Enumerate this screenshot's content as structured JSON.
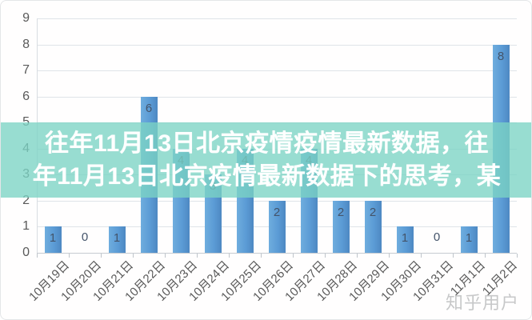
{
  "banner": {
    "line1": "往年11月13日北京疫情疫情最新数据，往",
    "line2": "年11月13日北京疫情最新数据下的思考，某",
    "background_color": "#7bd4c4",
    "text_color": "#ffffff"
  },
  "watermark": {
    "text": "知乎用户",
    "color": "#c2c3c4"
  },
  "chart_data": {
    "type": "bar",
    "title": "",
    "xlabel": "",
    "ylabel": "",
    "categories": [
      "10月19日",
      "10月20日",
      "10月21日",
      "10月22日",
      "10月23日",
      "10月24日",
      "10月25日",
      "10月26日",
      "10月27日",
      "10月28日",
      "10月29日",
      "10月30日",
      "10月31日",
      "11月1日",
      "11月2日"
    ],
    "values": [
      1,
      0,
      1,
      6,
      4,
      3,
      4,
      2,
      4,
      2,
      2,
      1,
      0,
      1,
      8
    ],
    "ylim": [
      0,
      9
    ],
    "ytick_interval": 1,
    "grid": true,
    "legend": "none",
    "value_labels": true,
    "bar_color": "#5b9bd5",
    "value_label_color": "#44546a",
    "axis_text_color": "#595959",
    "gridline_color": "#dfe4e9"
  }
}
